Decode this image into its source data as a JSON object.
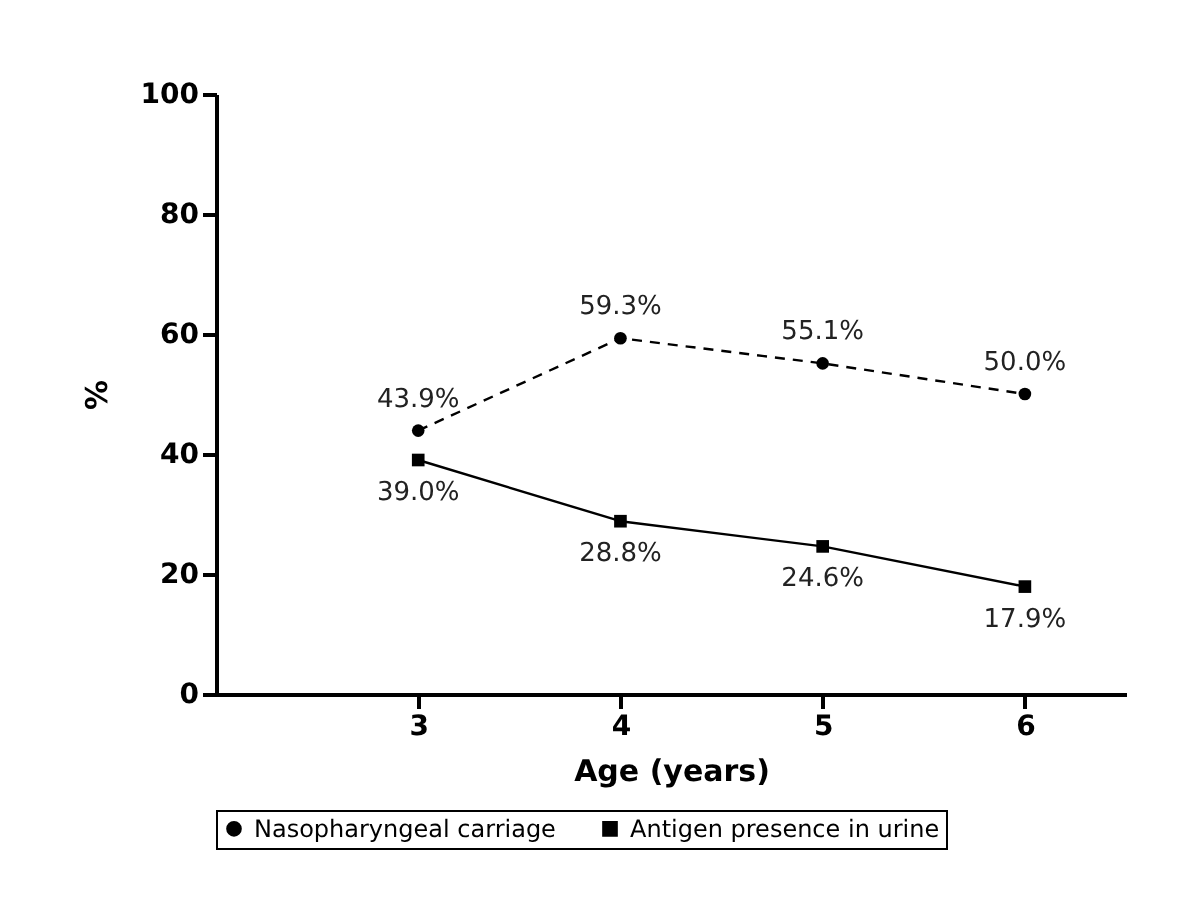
{
  "chart_data": {
    "type": "line",
    "xlabel": "Age (years)",
    "ylabel": "%",
    "x": [
      3,
      4,
      5,
      6
    ],
    "xlim": [
      2,
      6.5
    ],
    "xticks": [
      3,
      4,
      5,
      6
    ],
    "ylim": [
      0,
      100
    ],
    "yticks": [
      0,
      20,
      40,
      60,
      80,
      100
    ],
    "grid": false,
    "legend": "bottom",
    "series": [
      {
        "name": "Nasopharyngeal carriage",
        "color": "#000000",
        "values": [
          43.9,
          59.3,
          55.1,
          50.0
        ],
        "value_labels": [
          "43.9%",
          "59.3%",
          "55.1%",
          "50.0%"
        ],
        "marker": "circle",
        "line_style": "dashed"
      },
      {
        "name": "Antigen presence in urine",
        "color": "#000000",
        "values": [
          39.0,
          28.8,
          24.6,
          17.9
        ],
        "value_labels": [
          "39.0%",
          "28.8%",
          "24.6%",
          "17.9%"
        ],
        "marker": "square",
        "line_style": "solid"
      }
    ]
  }
}
